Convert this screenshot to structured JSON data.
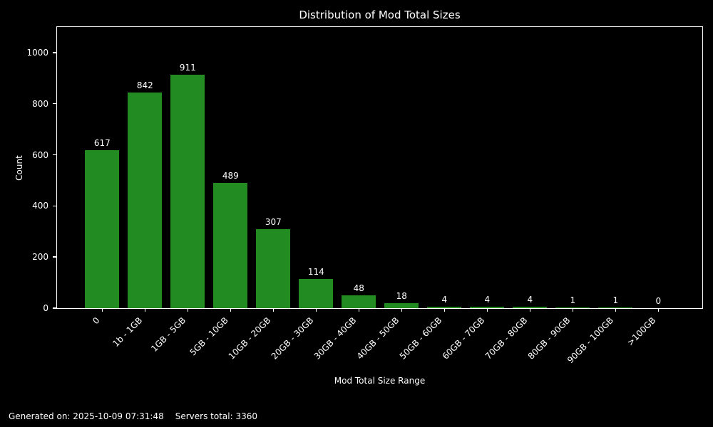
{
  "title": "Distribution of Mod Total Sizes",
  "chart_data": {
    "type": "bar",
    "title": "Distribution of Mod Total Sizes",
    "xlabel": "Mod Total Size Range",
    "ylabel": "Count",
    "categories": [
      "0",
      "1b - 1GB",
      "1GB - 5GB",
      "5GB - 10GB",
      "10GB - 20GB",
      "20GB - 30GB",
      "30GB - 40GB",
      "40GB - 50GB",
      "50GB - 60GB",
      "60GB - 70GB",
      "70GB - 80GB",
      "80GB - 90GB",
      "90GB - 100GB",
      ">100GB"
    ],
    "values": [
      617,
      842,
      911,
      489,
      307,
      114,
      48,
      18,
      4,
      4,
      4,
      1,
      1,
      0
    ],
    "bar_labels_shown": true,
    "yticks": [
      0,
      200,
      400,
      600,
      800,
      1000
    ],
    "ylim": [
      0,
      1100
    ],
    "grid": false,
    "legend": "none",
    "bar_color": "#228B22",
    "background_color": "#000000",
    "text_color": "#ffffff",
    "x_tick_rotation_deg": 45
  },
  "footer": {
    "generated": "Generated on: 2025-10-09 07:31:48",
    "servers_total": "Servers total: 3360"
  }
}
